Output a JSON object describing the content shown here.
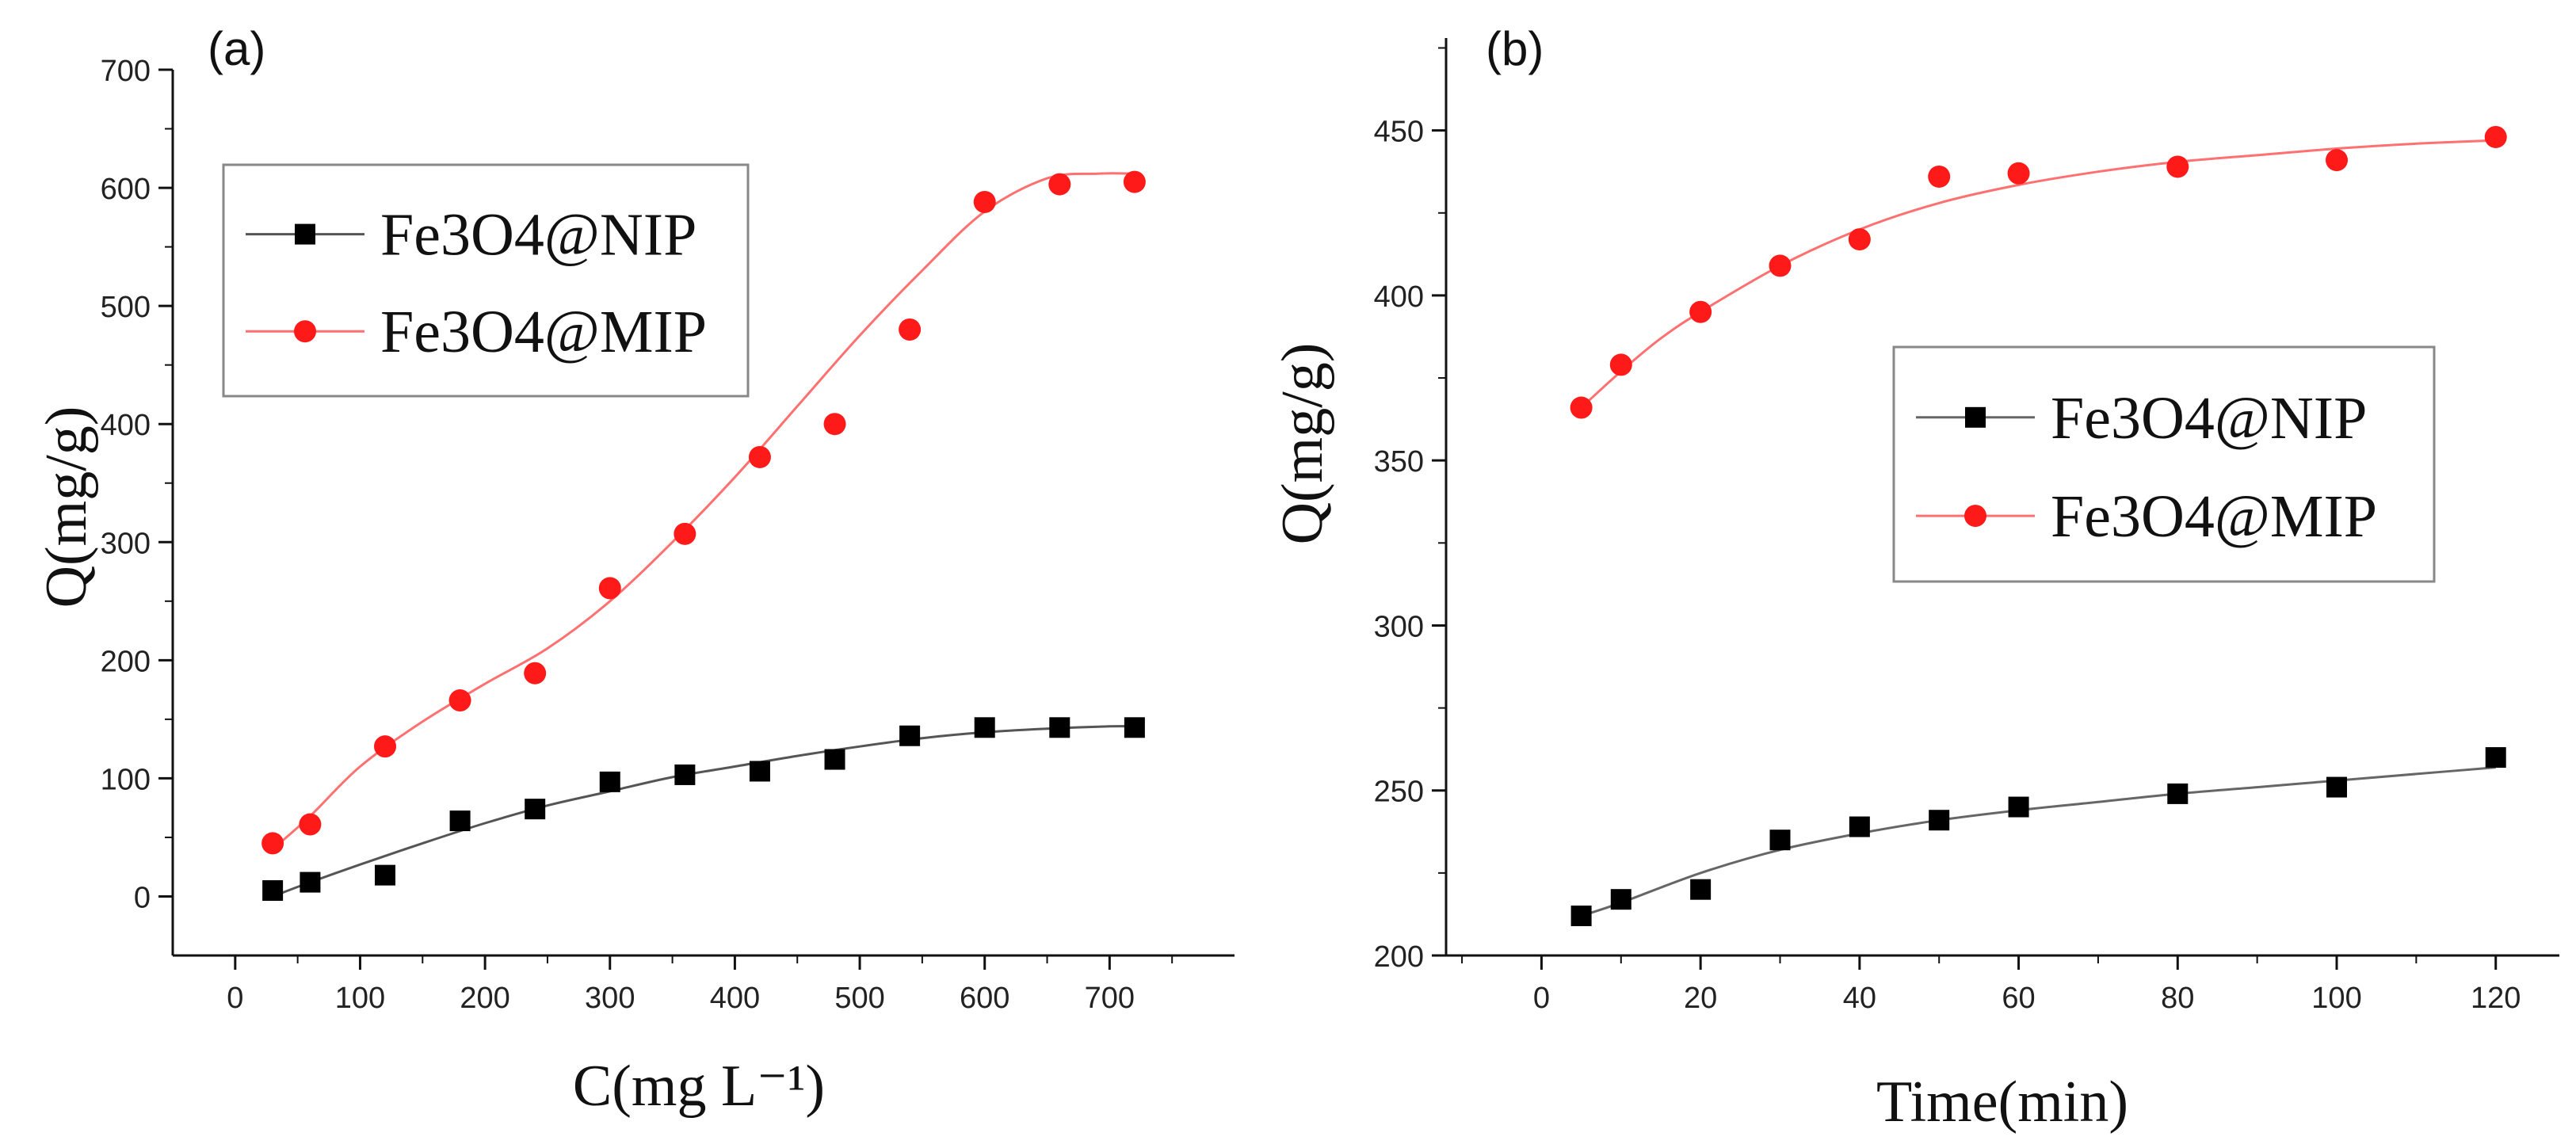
{
  "chart_data": [
    {
      "type": "scatter",
      "panel_label": "(a)",
      "xlabel": "C(mg L⁻¹)",
      "ylabel": "Q(mg/g)",
      "xlim": [
        -50,
        800
      ],
      "ylim": [
        -50,
        700
      ],
      "x_ticks": [
        0,
        100,
        200,
        300,
        400,
        500,
        600,
        700
      ],
      "y_ticks": [
        0,
        100,
        200,
        300,
        400,
        500,
        600,
        700
      ],
      "grid": false,
      "legend_position": "top-left",
      "series": [
        {
          "name": "Fe3O4@NIP",
          "marker": "square",
          "color": "#000000",
          "x": [
            30,
            60,
            120,
            180,
            240,
            300,
            360,
            420,
            480,
            540,
            600,
            660,
            720
          ],
          "y": [
            5,
            12,
            18,
            64,
            74,
            97,
            103,
            106,
            116,
            136,
            143,
            143,
            143
          ],
          "fit": {
            "color": "#555555",
            "x": [
              30,
              60,
              100,
              150,
              200,
              250,
              300,
              350,
              400,
              450,
              500,
              550,
              600,
              650,
              700,
              720
            ],
            "y": [
              0,
              12,
              27,
              45,
              62,
              77,
              89,
              101,
              110,
              119,
              127,
              134,
              139,
              142,
              144,
              144
            ]
          }
        },
        {
          "name": "Fe3O4@MIP",
          "marker": "circle",
          "color": "#ff1a1a",
          "x": [
            30,
            60,
            120,
            180,
            240,
            300,
            360,
            420,
            480,
            540,
            600,
            660,
            720
          ],
          "y": [
            45,
            61,
            127,
            166,
            189,
            261,
            307,
            372,
            400,
            480,
            588,
            603,
            605
          ],
          "fit": {
            "color": "#ff7070",
            "x": [
              30,
              60,
              100,
              150,
              200,
              250,
              300,
              350,
              400,
              450,
              500,
              550,
              600,
              650,
              690,
              720
            ],
            "y": [
              40,
              68,
              110,
              148,
              180,
              210,
              250,
              300,
              355,
              415,
              475,
              530,
              580,
              608,
              612,
              612
            ]
          }
        }
      ]
    },
    {
      "type": "scatter",
      "panel_label": "(b)",
      "xlabel": "Time(min)",
      "ylabel": "Q(mg/g)",
      "xlim": [
        -12,
        128
      ],
      "ylim": [
        200,
        478
      ],
      "x_ticks": [
        0,
        20,
        40,
        60,
        80,
        100,
        120
      ],
      "y_ticks": [
        200,
        250,
        300,
        350,
        400,
        450
      ],
      "grid": false,
      "legend_position": "center-right",
      "series": [
        {
          "name": "Fe3O4@NIP",
          "marker": "square",
          "color": "#000000",
          "x": [
            5,
            10,
            20,
            30,
            40,
            50,
            60,
            80,
            100,
            120
          ],
          "y": [
            212,
            217,
            220,
            235,
            239,
            241,
            245,
            249,
            251,
            260
          ],
          "fit": {
            "color": "#666666",
            "x": [
              5,
              10,
              20,
              30,
              40,
              50,
              60,
              70,
              80,
              90,
              100,
              110,
              120
            ],
            "y": [
              212,
              216,
              225,
              232,
              237,
              241,
              244,
              246.5,
              249,
              251,
              253,
              255,
              257
            ]
          }
        },
        {
          "name": "Fe3O4@MIP",
          "marker": "circle",
          "color": "#ff1a1a",
          "x": [
            5,
            10,
            20,
            30,
            40,
            50,
            60,
            80,
            100,
            120
          ],
          "y": [
            366,
            379,
            395,
            409,
            417,
            436,
            437,
            439,
            441,
            448
          ],
          "fit": {
            "color": "#ff7070",
            "x": [
              5,
              10,
              15,
              20,
              30,
              40,
              50,
              60,
              70,
              80,
              90,
              100,
              110,
              120
            ],
            "y": [
              366,
              377,
              387,
              395,
              409,
              420,
              428,
              433.5,
              437.5,
              440.5,
              442.5,
              444.5,
              446,
              447
            ]
          }
        }
      ]
    }
  ]
}
